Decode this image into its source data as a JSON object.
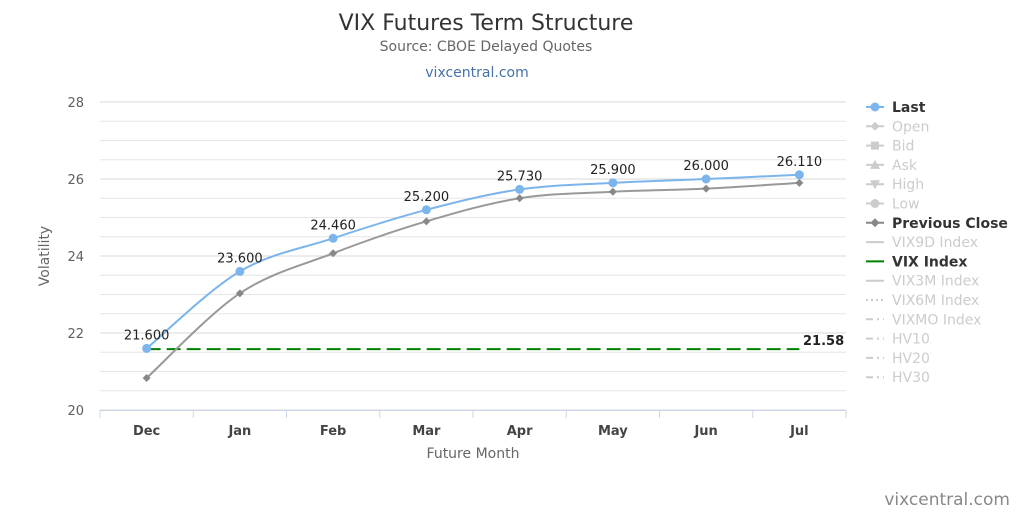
{
  "header": {
    "title": "VIX Futures Term Structure",
    "subtitle": "Source: CBOE Delayed Quotes",
    "link": "vixcentral.com"
  },
  "credit": "vixcentral.com",
  "colors": {
    "last": "#7cb5ec",
    "previous_close": "#999999",
    "vix_index": "#008000",
    "grid": "#e6e6e6",
    "legend_active": "#333333",
    "legend_inactive": "#cccccc"
  },
  "chart_data": {
    "type": "line",
    "xlabel": "Future Month",
    "ylabel": "Volatility",
    "ylim": [
      20,
      28
    ],
    "yticks": [
      20,
      22,
      24,
      26,
      28
    ],
    "categories": [
      "Dec",
      "Jan",
      "Feb",
      "Mar",
      "Apr",
      "May",
      "Jun",
      "Jul"
    ],
    "grid": true,
    "legend_position": "right",
    "series": [
      {
        "name": "Last",
        "values": [
          21.6,
          23.6,
          24.46,
          25.2,
          25.73,
          25.9,
          26.0,
          26.11
        ],
        "labels": [
          "21.600",
          "23.600",
          "24.460",
          "25.200",
          "25.730",
          "25.900",
          "26.000",
          "26.110"
        ],
        "marker": "circle"
      },
      {
        "name": "Previous Close",
        "values": [
          20.83,
          23.03,
          24.07,
          24.9,
          25.5,
          25.67,
          25.75,
          25.9
        ],
        "marker": "diamond"
      },
      {
        "name": "VIX Index",
        "values": [
          21.58,
          21.58,
          21.58,
          21.58,
          21.58,
          21.58,
          21.58,
          21.58
        ],
        "end_label": "21.58",
        "style": "dashed"
      }
    ],
    "legend": [
      {
        "name": "Last",
        "active": true,
        "icon": "circle-line"
      },
      {
        "name": "Open",
        "active": false,
        "icon": "diamond-line"
      },
      {
        "name": "Bid",
        "active": false,
        "icon": "square-line"
      },
      {
        "name": "Ask",
        "active": false,
        "icon": "triangle-line"
      },
      {
        "name": "High",
        "active": false,
        "icon": "triangle-down-line"
      },
      {
        "name": "Low",
        "active": false,
        "icon": "circle-line"
      },
      {
        "name": "Previous Close",
        "active": true,
        "icon": "diamond-line"
      },
      {
        "name": "VIX9D Index",
        "active": false,
        "icon": "solid-line"
      },
      {
        "name": "VIX Index",
        "active": true,
        "icon": "solid-line"
      },
      {
        "name": "VIX3M Index",
        "active": false,
        "icon": "solid-line"
      },
      {
        "name": "VIX6M Index",
        "active": false,
        "icon": "dotted-line"
      },
      {
        "name": "VIXMO Index",
        "active": false,
        "icon": "dashdot-line"
      },
      {
        "name": "HV10",
        "active": false,
        "icon": "dashdot-line"
      },
      {
        "name": "HV20",
        "active": false,
        "icon": "dashdot-line"
      },
      {
        "name": "HV30",
        "active": false,
        "icon": "dashdot-line"
      }
    ]
  }
}
